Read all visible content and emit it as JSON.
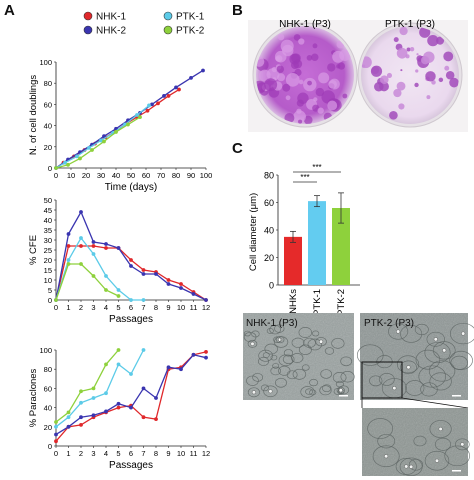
{
  "panels": {
    "A": "A",
    "B": "B",
    "C": "C"
  },
  "legend": [
    {
      "name": "NHK-1",
      "color": "#e0282b"
    },
    {
      "name": "NHK-2",
      "color": "#3a35b0"
    },
    {
      "name": "PTK-1",
      "color": "#5ccbe8"
    },
    {
      "name": "PTK-2",
      "color": "#8ed13c"
    }
  ],
  "plates": {
    "left_label": "NHK-1 (P3)",
    "right_label": "PTK-1 (P3)"
  },
  "micrographs": {
    "left_label": "NHK-1 (P3)",
    "right_label": "PTK-2 (P3)"
  },
  "chart_data": [
    {
      "type": "line",
      "xlabel": "Time (days)",
      "ylabel": "N. of cell doublings",
      "xlim": [
        0,
        100
      ],
      "ylim": [
        0,
        100
      ],
      "xticks": [
        0,
        10,
        20,
        30,
        40,
        50,
        60,
        70,
        80,
        90,
        100
      ],
      "yticks": [
        0,
        20,
        40,
        60,
        80,
        100
      ],
      "series": [
        {
          "name": "NHK-1",
          "x": [
            0,
            5,
            12,
            19,
            26,
            33,
            40,
            47,
            54,
            61,
            68,
            75,
            82
          ],
          "y": [
            0,
            5,
            11,
            17,
            23,
            29,
            35,
            42,
            48,
            54,
            61,
            68,
            74
          ]
        },
        {
          "name": "NHK-2",
          "x": [
            0,
            8,
            16,
            24,
            32,
            40,
            48,
            56,
            64,
            72,
            80,
            90,
            98
          ],
          "y": [
            0,
            8,
            15,
            22,
            30,
            37,
            45,
            52,
            60,
            68,
            76,
            85,
            92
          ]
        },
        {
          "name": "PTK-1",
          "x": [
            0,
            6,
            14,
            22,
            30,
            38,
            46,
            54,
            62
          ],
          "y": [
            0,
            5,
            11,
            19,
            26,
            33,
            41,
            50,
            59
          ]
        },
        {
          "name": "PTK-2",
          "x": [
            0,
            8,
            16,
            24,
            32,
            40,
            48,
            56
          ],
          "y": [
            0,
            3,
            9,
            17,
            25,
            34,
            41,
            48
          ]
        }
      ]
    },
    {
      "type": "line",
      "xlabel": "Passages",
      "ylabel": "% CFE",
      "xlim": [
        0,
        12
      ],
      "ylim": [
        0,
        50
      ],
      "xticks": [
        0,
        1,
        2,
        3,
        4,
        5,
        6,
        7,
        8,
        9,
        10,
        11,
        12
      ],
      "yticks": [
        0,
        5,
        10,
        15,
        20,
        25,
        30,
        35,
        40,
        45,
        50
      ],
      "series": [
        {
          "name": "NHK-1",
          "x": [
            0,
            1,
            2,
            3,
            4,
            5,
            6,
            7,
            8,
            9,
            10,
            11,
            12
          ],
          "y": [
            0,
            27,
            27,
            27,
            26,
            26,
            20,
            15,
            14,
            10,
            8,
            4,
            0
          ]
        },
        {
          "name": "NHK-2",
          "x": [
            0,
            1,
            2,
            3,
            4,
            5,
            6,
            7,
            8,
            9,
            10,
            11,
            12
          ],
          "y": [
            0,
            33,
            44,
            29,
            28,
            26,
            17,
            13,
            13,
            8,
            6,
            3,
            0
          ]
        },
        {
          "name": "PTK-1",
          "x": [
            0,
            1,
            2,
            3,
            4,
            5,
            6,
            7
          ],
          "y": [
            0,
            20,
            31,
            23,
            12,
            5,
            0,
            0
          ]
        },
        {
          "name": "PTK-2",
          "x": [
            0,
            1,
            2,
            3,
            4,
            5
          ],
          "y": [
            0,
            18,
            18,
            12,
            5,
            2
          ]
        }
      ]
    },
    {
      "type": "line",
      "xlabel": "Passages",
      "ylabel": "% Paraclones",
      "xlim": [
        0,
        12
      ],
      "ylim": [
        0,
        100
      ],
      "xticks": [
        0,
        1,
        2,
        3,
        4,
        5,
        6,
        7,
        8,
        9,
        10,
        11,
        12
      ],
      "yticks": [
        0,
        20,
        40,
        60,
        80,
        100
      ],
      "series": [
        {
          "name": "NHK-1",
          "x": [
            0,
            1,
            2,
            3,
            4,
            5,
            6,
            7,
            8,
            9,
            10,
            11,
            12
          ],
          "y": [
            5,
            20,
            22,
            30,
            35,
            40,
            42,
            30,
            28,
            80,
            82,
            95,
            98
          ]
        },
        {
          "name": "NHK-2",
          "x": [
            0,
            1,
            2,
            3,
            4,
            5,
            6,
            7,
            8,
            9,
            10,
            11,
            12
          ],
          "y": [
            12,
            20,
            30,
            32,
            36,
            44,
            40,
            60,
            50,
            82,
            80,
            95,
            92
          ]
        },
        {
          "name": "PTK-1",
          "x": [
            0,
            1,
            2,
            3,
            4,
            5,
            6,
            7
          ],
          "y": [
            20,
            30,
            45,
            50,
            55,
            85,
            75,
            100
          ]
        },
        {
          "name": "PTK-2",
          "x": [
            0,
            1,
            2,
            3,
            4,
            5
          ],
          "y": [
            25,
            35,
            57,
            60,
            85,
            100
          ]
        }
      ]
    },
    {
      "type": "bar",
      "ylabel": "Cell diameter (μm)",
      "categories": [
        "NHKs",
        "PTK-1",
        "PTK-2"
      ],
      "values": [
        35,
        61,
        56
      ],
      "errors": [
        4,
        4,
        11
      ],
      "colors": [
        "#e52a2a",
        "#63ccf0",
        "#8ed13c"
      ],
      "ylim": [
        0,
        80
      ],
      "yticks": [
        0,
        20,
        40,
        60,
        80
      ],
      "significance": [
        {
          "from": "NHKs",
          "to": "PTK-1",
          "label": "***"
        },
        {
          "from": "NHKs",
          "to": "PTK-2",
          "label": "***"
        }
      ]
    }
  ]
}
